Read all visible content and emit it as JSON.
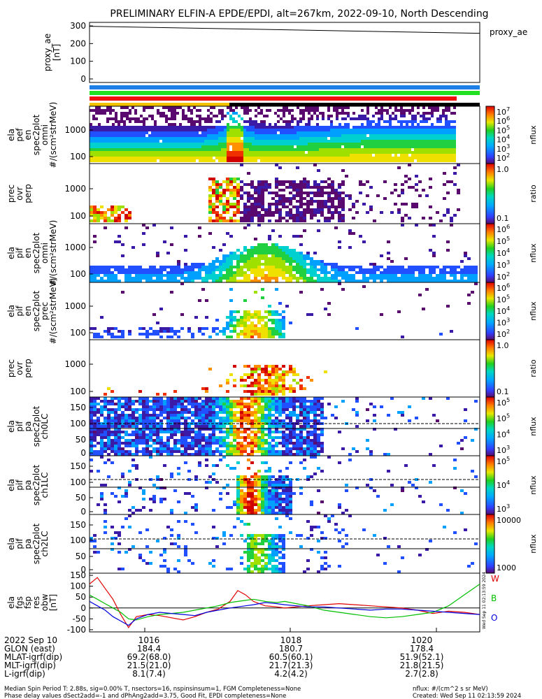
{
  "title": "PRELIMINARY ELFIN-A EPDE/EPDI, alt=267km, 2022-09-10, North Descending",
  "colors": {
    "bar_blue": "#1e7fe6",
    "bar_green": "#22e022",
    "bar_red": "#f01010",
    "bar_black": "#000000",
    "bar_yellow": "#f2c200",
    "line_red": "#e00000",
    "line_green": "#00c000",
    "line_blue": "#0000e0"
  },
  "chart_data": [
    {
      "type": "line",
      "name": "proxy_ae",
      "ylabel": "proxy_ae [nT]",
      "legend": "proxy_ae",
      "yticks": [
        "300",
        "200",
        "100",
        "0"
      ],
      "ylim": [
        -20,
        320
      ],
      "x_minutes": [
        1014.0,
        1020.8
      ],
      "y": [
        298,
        258
      ]
    },
    {
      "type": "heatmap",
      "name": "elx_pef_en_spec2plot_omni",
      "ylabel": [
        "ela",
        "pef",
        "en",
        "spec2plot",
        "omni",
        "#/(scm²strMeV)"
      ],
      "yticks": [
        "1000",
        "100"
      ],
      "ylog": true,
      "ylim": [
        60,
        7000
      ],
      "cbar_label": "nflux",
      "cbar_ticks": [
        "10^7",
        "10^6",
        "10^5",
        "10^4",
        "10^3",
        "10^2"
      ]
    },
    {
      "type": "heatmap",
      "name": "elx_pef_en_spec2plot_prec_ovr_perp",
      "ylabel": [
        "prec",
        "ovr",
        "perp"
      ],
      "yticks": [
        "1000",
        "100"
      ],
      "ylog": true,
      "cbar_label": "ratio",
      "cbar_ticks": [
        "1.0",
        "0.1"
      ]
    },
    {
      "type": "heatmap",
      "name": "elx_pif_en_spec2plot_omni",
      "ylabel": [
        "ela",
        "pif",
        "en",
        "spec2plot",
        "omni",
        "#/(scm²strMeV)"
      ],
      "yticks": [
        "1000",
        "100"
      ],
      "ylog": true,
      "cbar_label": "nflux",
      "cbar_ticks": [
        "10^6",
        "10^5",
        "10^4",
        "10^3",
        "10^2"
      ]
    },
    {
      "type": "heatmap",
      "name": "elx_pif_en_spec2plot_prec",
      "ylabel": [
        "ela",
        "pif",
        "en",
        "spec2plot",
        "prec",
        "#/(scm²strMeV)"
      ],
      "yticks": [
        "1000",
        "100"
      ],
      "ylog": true,
      "cbar_label": "nflux",
      "cbar_ticks": [
        "10^6",
        "10^5",
        "10^4",
        "10^3",
        "10^2"
      ]
    },
    {
      "type": "heatmap",
      "name": "elx_pif_en_spec2plot_prec_ovr_perp",
      "ylabel": [
        "prec",
        "ovr",
        "perp"
      ],
      "yticks": [
        "1000",
        "100"
      ],
      "ylog": true,
      "cbar_label": "ratio",
      "cbar_ticks": [
        "1.0",
        "0.1"
      ]
    },
    {
      "type": "heatmap",
      "name": "elx_pif_pa_spec2plot_ch0LC",
      "ylabel": [
        "ela",
        "pif",
        "pa",
        "spec2plot",
        "ch0LC"
      ],
      "yticks": [
        "150",
        "100",
        "50",
        "0"
      ],
      "ylim": [
        0,
        180
      ],
      "lc_lines": [
        98,
        82
      ],
      "cbar_label": "nflux",
      "cbar_ticks": [
        "10^5",
        "10^5",
        "10^4",
        "10^3"
      ]
    },
    {
      "type": "heatmap",
      "name": "elx_pif_pa_spec2plot_ch1LC",
      "ylabel": [
        "ela",
        "pif",
        "pa",
        "spec2plot",
        "ch1LC"
      ],
      "yticks": [
        "150",
        "100",
        "50",
        "0"
      ],
      "ylim": [
        0,
        180
      ],
      "lc_lines": [
        98,
        82
      ],
      "cbar_label": "nflux",
      "cbar_ticks": [
        "10^5",
        "10^4",
        "10^3"
      ]
    },
    {
      "type": "heatmap",
      "name": "elx_pif_pa_spec2plot_ch2LC",
      "ylabel": [
        "ela",
        "pif",
        "pa",
        "spec2plot",
        "ch2LC"
      ],
      "yticks": [
        "150",
        "100",
        "50",
        "0"
      ],
      "ylim": [
        0,
        180
      ],
      "lc_lines": [
        98,
        82
      ],
      "cbar_label": "nflux",
      "cbar_ticks": [
        "10000",
        "1000"
      ]
    },
    {
      "type": "line",
      "name": "elx_fgs_fsp_res_obw",
      "ylabel": [
        "ela",
        "fgs",
        "fsp",
        "res",
        "obw",
        "[nT]"
      ],
      "yticks": [
        "150",
        "100",
        "50",
        "0",
        "-50",
        "-100"
      ],
      "ylim": [
        -110,
        160
      ],
      "x_norm": [
        0,
        0.02,
        0.04,
        0.06,
        0.08,
        0.1,
        0.12,
        0.15,
        0.18,
        0.21,
        0.24,
        0.27,
        0.3,
        0.33,
        0.36,
        0.38,
        0.4,
        0.42,
        0.45,
        0.48,
        0.5,
        0.53,
        0.56,
        0.6,
        0.64,
        0.68,
        0.72,
        0.76,
        0.8,
        0.84,
        0.88,
        0.92,
        0.96,
        1.0
      ],
      "series": [
        {
          "name": "W",
          "values": [
            110,
            140,
            90,
            40,
            -30,
            -90,
            -40,
            -30,
            -35,
            -45,
            -55,
            -40,
            -20,
            -5,
            30,
            80,
            60,
            30,
            10,
            5,
            0,
            5,
            10,
            15,
            20,
            15,
            10,
            5,
            0,
            -10,
            -25,
            -15,
            -20,
            -30
          ]
        },
        {
          "name": "B",
          "values": [
            60,
            40,
            20,
            0,
            -20,
            -50,
            -55,
            -40,
            -30,
            -25,
            -20,
            -10,
            0,
            10,
            25,
            30,
            35,
            40,
            30,
            25,
            30,
            20,
            10,
            -10,
            -20,
            -30,
            -40,
            -45,
            -40,
            -30,
            -20,
            10,
            60,
            110
          ]
        },
        {
          "name": "O",
          "values": [
            30,
            10,
            -10,
            -40,
            -60,
            -80,
            -50,
            -30,
            -20,
            -25,
            -30,
            -35,
            -20,
            -10,
            0,
            5,
            10,
            15,
            25,
            20,
            15,
            10,
            5,
            5,
            0,
            -5,
            -10,
            -5,
            -5,
            -10,
            -15,
            -20,
            -25,
            -30
          ]
        }
      ]
    }
  ],
  "x_ticks": [
    "1016",
    "1018",
    "1020"
  ],
  "rows": [
    {
      "label": "2022 Sep 10",
      "values": [
        "1016",
        "1018",
        "1020"
      ]
    },
    {
      "label": "GLON (east)",
      "values": [
        "184.4",
        "180.7",
        "178.4"
      ]
    },
    {
      "label": "MLAT-igrf(dip)",
      "values": [
        "69.2(68.0)",
        "60.5(60.1)",
        "51.9(52.1)"
      ]
    },
    {
      "label": "MLT-igrf(dip)",
      "values": [
        "21.5(21.0)",
        "21.7(21.3)",
        "21.8(21.5)"
      ]
    },
    {
      "label": "L-igrf(dip)",
      "values": [
        "8.1(7.4)",
        "4.2(4.2)",
        "2.7(2.8)"
      ]
    }
  ],
  "footer": {
    "line1": "Median Spin Period T: 2.88s, sig=0.00% T, nsectors=16, nspinsinsum=1, FGM Completeness=None",
    "line2": "Phase delay values dSect2add=-1 and dPhAng2add=3.75, Good Fit, EPDI completeness=None",
    "right1": "nflux: #/(cm^2 s sr MeV)",
    "right2": "Created: Wed Sep 11 02:13:59 2024",
    "side": "Wed Sep 11 02:13:59 2024"
  }
}
